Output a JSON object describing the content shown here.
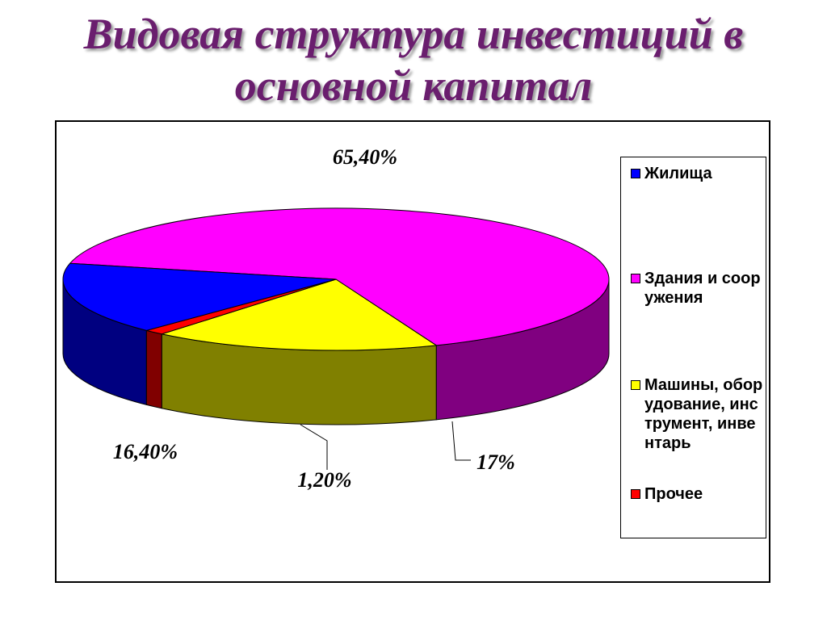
{
  "title": {
    "line1": "Видовая структура инвестиций в",
    "line2": "основной капитал"
  },
  "chart_data": {
    "type": "pie",
    "is_3d": true,
    "legend_position": "right",
    "slices": [
      {
        "name": "Здания и сооружения",
        "value": 65.4,
        "label": "65,40%",
        "color": "#ff00ff",
        "side_color": "#800080"
      },
      {
        "name": "Машины, оборудование, инструмент, инвентарь",
        "value": 17,
        "label": "17%",
        "color": "#ffff00",
        "side_color": "#808000"
      },
      {
        "name": "Прочее",
        "value": 1.2,
        "label": "1,20%",
        "color": "#ff0000",
        "side_color": "#800000"
      },
      {
        "name": "Жилища",
        "value": 16.4,
        "label": "16,40%",
        "color": "#0000ff",
        "side_color": "#000080"
      }
    ]
  },
  "legend": {
    "items": [
      {
        "label": "Жилища",
        "color": "#0000ff"
      },
      {
        "label": "Здания и сооружения",
        "color": "#ff00ff"
      },
      {
        "label": "Машины, оборудование, инструмент, инвентарь",
        "color": "#ffff00"
      },
      {
        "label": "Прочее",
        "color": "#ff0000"
      }
    ]
  }
}
